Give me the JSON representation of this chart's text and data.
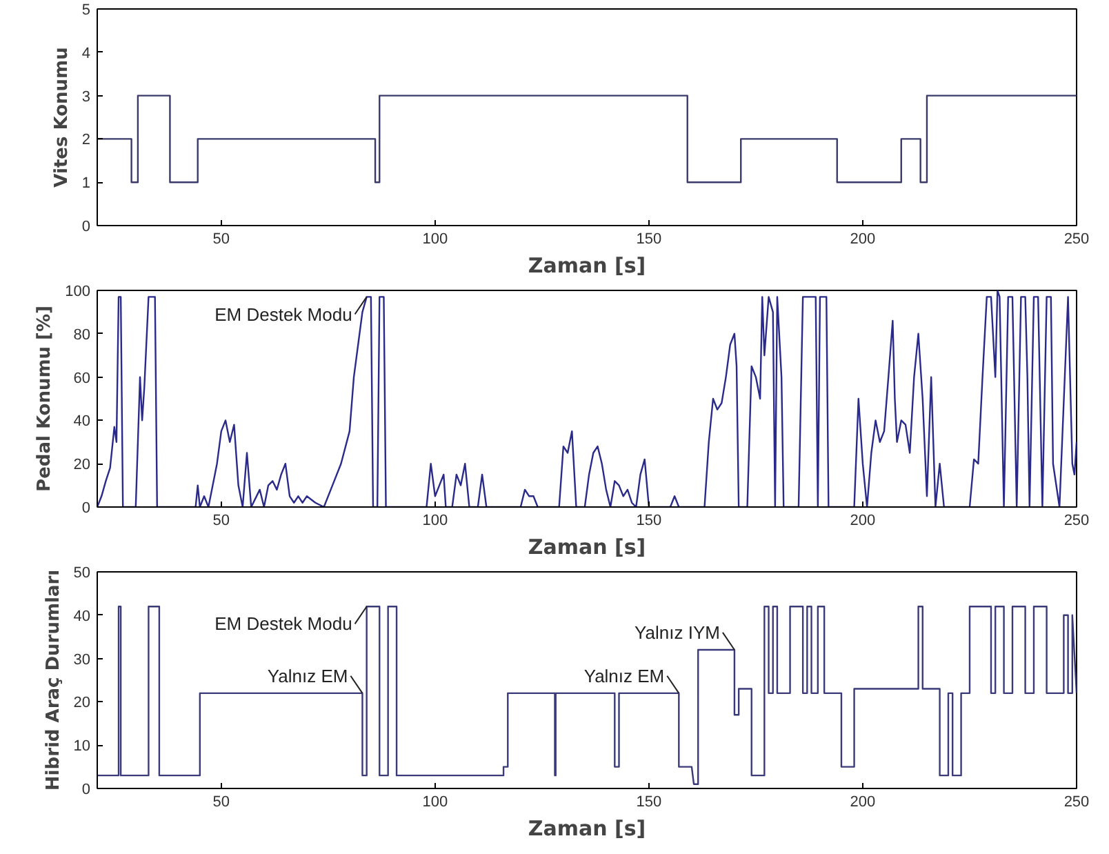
{
  "chart_data": [
    {
      "type": "step",
      "xlabel": "Zaman [s]",
      "ylabel": "Vites Konumu",
      "xlim": [
        21,
        250
      ],
      "ylim": [
        0,
        5
      ],
      "xticks": [
        50,
        100,
        150,
        200,
        250
      ],
      "yticks": [
        0,
        1,
        2,
        3,
        4,
        5
      ],
      "grid": false,
      "series": [
        {
          "color": "#3a3a6a",
          "x": [
            21,
            29,
            30.5,
            38,
            44.5,
            86,
            87,
            159,
            171.5,
            194,
            209,
            213.5,
            215,
            250
          ],
          "values": [
            2,
            1,
            3,
            1,
            2,
            1,
            3,
            1,
            2,
            1,
            2,
            1,
            3,
            3
          ]
        }
      ]
    },
    {
      "type": "line",
      "xlabel": "Zaman [s]",
      "ylabel": "Pedal Konumu [%]",
      "xlim": [
        21,
        250
      ],
      "ylim": [
        0,
        100
      ],
      "xticks": [
        50,
        100,
        150,
        200,
        250
      ],
      "yticks": [
        0,
        20,
        40,
        60,
        80,
        100
      ],
      "grid": false,
      "annotations": [
        {
          "text": "EM Destek Modu",
          "x": 84,
          "y": 97
        }
      ],
      "series": [
        {
          "color": "#2a2a8a",
          "x": [
            21,
            22,
            23,
            24,
            25,
            25.5,
            26,
            26.5,
            27,
            30,
            31,
            31.5,
            32,
            33,
            34.5,
            35,
            44,
            44.5,
            45,
            46,
            47,
            49,
            50,
            51,
            52,
            53,
            54,
            55,
            56,
            57,
            59,
            60,
            61,
            62,
            63,
            64,
            65,
            66,
            67,
            68,
            69,
            70,
            72,
            74,
            76,
            78,
            80,
            81,
            82,
            83,
            84,
            85,
            85.5,
            86.5,
            87,
            88,
            88.5,
            98,
            99,
            100,
            101,
            102,
            102.5,
            104,
            105,
            106,
            107,
            108,
            110,
            111,
            112,
            120,
            121,
            122,
            123,
            124,
            129,
            130,
            131,
            132,
            133,
            135,
            136,
            137,
            138,
            139,
            140,
            141,
            142,
            143,
            144,
            145,
            146,
            147,
            148,
            149,
            150,
            155,
            156,
            157,
            163,
            164,
            165,
            166,
            167,
            168,
            169,
            170,
            170.5,
            171,
            173,
            174,
            175,
            176,
            176.5,
            177,
            178,
            179,
            179.5,
            180,
            181,
            181.5,
            185,
            186,
            189,
            189.5,
            190,
            191.5,
            192,
            198,
            199,
            200,
            201,
            202,
            203,
            204,
            205,
            206,
            207,
            207.5,
            208,
            209,
            210,
            211,
            212,
            213,
            214,
            215,
            216,
            217,
            218,
            219,
            225,
            226,
            227,
            228,
            229,
            230,
            231,
            231.5,
            232,
            233,
            234,
            235,
            236,
            237,
            238,
            238.5,
            239,
            240,
            241,
            242,
            243,
            244,
            244.5,
            246,
            248,
            249,
            249.5,
            250
          ],
          "values": [
            0,
            5,
            12,
            18,
            37,
            30,
            97,
            97,
            0,
            0,
            60,
            40,
            55,
            97,
            97,
            0,
            0,
            10,
            0,
            5,
            0,
            20,
            35,
            40,
            30,
            38,
            10,
            0,
            25,
            0,
            8,
            0,
            10,
            12,
            8,
            15,
            20,
            5,
            2,
            5,
            2,
            5,
            2,
            0,
            10,
            20,
            35,
            60,
            75,
            90,
            97,
            97,
            0,
            0,
            97,
            97,
            0,
            0,
            20,
            5,
            10,
            15,
            0,
            0,
            15,
            10,
            20,
            0,
            0,
            15,
            0,
            0,
            8,
            5,
            5,
            0,
            0,
            28,
            25,
            35,
            0,
            0,
            15,
            25,
            28,
            20,
            8,
            0,
            12,
            10,
            5,
            8,
            2,
            0,
            15,
            22,
            0,
            0,
            5,
            0,
            0,
            30,
            50,
            45,
            48,
            60,
            75,
            80,
            65,
            0,
            0,
            65,
            60,
            50,
            97,
            70,
            97,
            90,
            0,
            97,
            60,
            0,
            0,
            97,
            97,
            0,
            97,
            97,
            0,
            0,
            50,
            20,
            0,
            25,
            40,
            30,
            35,
            60,
            86,
            50,
            30,
            40,
            38,
            25,
            60,
            80,
            50,
            5,
            60,
            0,
            20,
            0,
            0,
            22,
            20,
            60,
            97,
            97,
            60,
            100,
            97,
            0,
            97,
            97,
            0,
            97,
            97,
            60,
            0,
            97,
            97,
            0,
            97,
            97,
            20,
            0,
            97,
            20,
            15,
            30
          ]
        }
      ]
    },
    {
      "type": "line",
      "xlabel": "Zaman [s]",
      "ylabel": "Hibrid Araç Durumları",
      "xlim": [
        21,
        250
      ],
      "ylim": [
        0,
        50
      ],
      "xticks": [
        50,
        100,
        150,
        200,
        250
      ],
      "yticks": [
        0,
        10,
        20,
        30,
        40,
        50
      ],
      "grid": false,
      "annotations": [
        {
          "text": "EM Destek Modu",
          "x": 84,
          "y": 42
        },
        {
          "text": "Yalnız EM",
          "x": 83,
          "y": 22
        },
        {
          "text": "Yalnız EM",
          "x": 157,
          "y": 22
        },
        {
          "text": "Yalnız IYM",
          "x": 170,
          "y": 32
        }
      ],
      "series": [
        {
          "color": "#3a3a7a",
          "x": [
            21,
            26,
            26,
            26.5,
            26.5,
            33,
            33,
            35.5,
            35.5,
            45,
            45,
            83,
            83,
            84,
            84,
            87,
            87,
            89,
            89,
            91,
            91,
            116,
            116,
            117,
            117,
            128,
            128,
            128.2,
            128.2,
            142,
            142,
            143,
            143,
            157,
            157,
            160,
            160.5,
            161.5,
            161.5,
            170,
            170,
            171,
            171,
            174,
            174,
            177,
            177,
            178,
            178,
            179,
            179,
            180,
            180,
            183,
            183,
            186,
            186,
            187,
            187,
            188,
            188,
            189.5,
            189.5,
            191,
            191,
            195,
            195,
            198,
            198,
            213,
            213,
            214,
            214,
            218,
            218,
            220,
            220,
            221,
            221,
            223,
            223,
            225,
            225,
            230,
            230,
            231,
            231,
            233,
            233,
            235,
            235,
            238,
            238,
            240,
            240,
            243,
            243,
            247,
            247,
            248,
            248,
            249,
            249,
            250
          ],
          "values": [
            3,
            3,
            42,
            42,
            3,
            3,
            42,
            42,
            3,
            3,
            22,
            22,
            3,
            3,
            42,
            42,
            3,
            3,
            42,
            42,
            3,
            3,
            5,
            5,
            22,
            22,
            3,
            3,
            22,
            22,
            5,
            5,
            22,
            22,
            5,
            5,
            1,
            1,
            32,
            32,
            17,
            17,
            23,
            23,
            3,
            3,
            42,
            42,
            22,
            22,
            42,
            42,
            22,
            22,
            42,
            42,
            22,
            22,
            42,
            42,
            22,
            22,
            42,
            42,
            22,
            22,
            5,
            5,
            23,
            23,
            42,
            42,
            23,
            23,
            3,
            3,
            22,
            22,
            3,
            3,
            22,
            22,
            42,
            42,
            22,
            22,
            42,
            42,
            22,
            22,
            42,
            42,
            22,
            22,
            42,
            42,
            22,
            22,
            40,
            40,
            22,
            22,
            40,
            22
          ]
        }
      ]
    }
  ]
}
